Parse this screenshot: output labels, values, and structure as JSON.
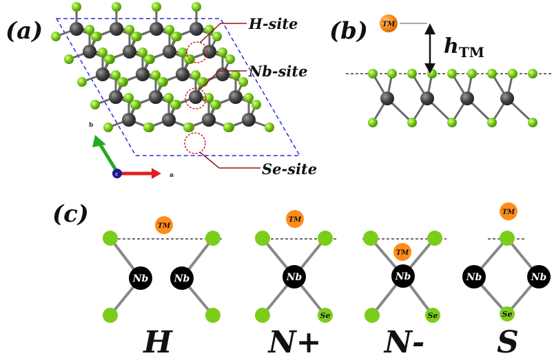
{
  "panel_a": {
    "label": "(a)",
    "site_labels": {
      "h_site": "H-site",
      "nb_site": "Nb-site",
      "se_site": "Se-site"
    },
    "axes": {
      "b": "b",
      "a": "a",
      "c": "c"
    }
  },
  "panel_b": {
    "label": "(b)",
    "tm_label": "TM",
    "height_label": "h",
    "height_subscript": "TM"
  },
  "panel_c": {
    "label": "(c)",
    "configs": [
      {
        "name": "H",
        "tm": "TM",
        "nb_left": "Nb",
        "nb_right": "Nb",
        "se": ""
      },
      {
        "name": "N+",
        "tm": "TM",
        "nb_center": "Nb",
        "se": "Se"
      },
      {
        "name": "N-",
        "tm": "TM",
        "nb_center": "Nb",
        "se": "Se"
      },
      {
        "name": "S",
        "tm": "TM",
        "nb_left": "Nb",
        "nb_right": "Nb",
        "se": "Se"
      }
    ]
  },
  "colors": {
    "se_atom": "#7ccc1c",
    "nb_atom": "#4a4a4a",
    "tm_atom": "#ff8c1a",
    "cell_outline": "#2b2bd6",
    "site_marker": "#cc2222",
    "axis_a": "#e02020",
    "axis_b": "#22aa22",
    "axis_c": "#1a1a8a"
  }
}
